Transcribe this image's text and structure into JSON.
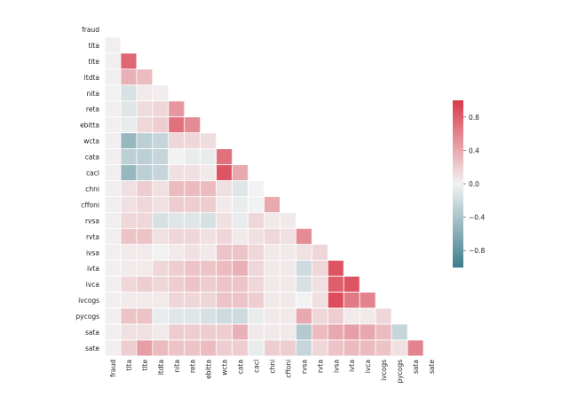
{
  "chart_data": {
    "type": "heatmap",
    "labels": [
      "fraud",
      "tlta",
      "tlte",
      "ltdta",
      "nita",
      "reta",
      "ebitta",
      "wcta",
      "cata",
      "cacl",
      "chni",
      "cffoni",
      "rvsa",
      "rvta",
      "ivsa",
      "ivta",
      "ivca",
      "ivcogs",
      "pycogs",
      "sata",
      "sate"
    ],
    "mask": "upper-triangle-including-diagonal",
    "colormap": {
      "low": "#3d7d8d",
      "mid": "#f2f2f2",
      "high": "#d9394a"
    },
    "vlim": [
      -1,
      1
    ],
    "colorbar_ticks": [
      0.8,
      0.4,
      0.0,
      -0.4,
      -0.8
    ],
    "colorbar_tick_labels": [
      "0.8",
      "0.4",
      "0.0",
      "−0.4",
      "−0.8"
    ],
    "values": [
      [],
      [
        0.02
      ],
      [
        0.02,
        0.75
      ],
      [
        0.02,
        0.35,
        0.3
      ],
      [
        0.0,
        -0.15,
        0.05,
        0.03
      ],
      [
        0.02,
        -0.1,
        0.12,
        0.15,
        0.5
      ],
      [
        0.02,
        -0.05,
        0.15,
        0.2,
        0.7,
        0.55
      ],
      [
        0.02,
        -0.5,
        -0.3,
        -0.25,
        0.15,
        0.15,
        0.12
      ],
      [
        0.02,
        -0.3,
        -0.3,
        -0.25,
        0.0,
        -0.05,
        -0.05,
        0.7
      ],
      [
        0.02,
        -0.5,
        -0.3,
        -0.25,
        0.1,
        0.1,
        0.05,
        0.85,
        0.4
      ],
      [
        0.02,
        0.1,
        0.2,
        0.1,
        0.3,
        0.3,
        0.3,
        0.1,
        -0.1,
        0.0
      ],
      [
        0.02,
        0.1,
        0.15,
        0.1,
        0.2,
        0.2,
        0.2,
        0.05,
        -0.05,
        0.0,
        0.4
      ],
      [
        0.02,
        0.15,
        0.15,
        -0.15,
        -0.1,
        -0.1,
        -0.15,
        0.1,
        -0.05,
        0.15,
        0.05,
        0.05
      ],
      [
        0.02,
        0.25,
        0.25,
        0.1,
        0.15,
        0.15,
        0.1,
        0.15,
        0.05,
        0.1,
        0.15,
        0.1,
        0.55
      ],
      [
        0.02,
        0.05,
        0.05,
        0.0,
        0.05,
        0.1,
        0.05,
        0.25,
        0.25,
        0.15,
        0.05,
        0.05,
        0.1,
        0.15
      ],
      [
        0.02,
        0.05,
        0.05,
        0.15,
        0.2,
        0.25,
        0.25,
        0.3,
        0.35,
        0.15,
        0.05,
        0.05,
        -0.2,
        0.15,
        0.85
      ],
      [
        0.02,
        0.15,
        0.2,
        0.15,
        0.2,
        0.25,
        0.2,
        0.25,
        0.25,
        0.15,
        0.05,
        0.05,
        -0.15,
        0.1,
        0.8,
        0.85
      ],
      [
        0.02,
        0.05,
        0.05,
        0.05,
        0.15,
        0.15,
        0.15,
        0.25,
        0.25,
        0.2,
        0.05,
        0.05,
        0.0,
        0.1,
        0.9,
        0.65,
        0.6
      ],
      [
        0.02,
        0.25,
        0.25,
        -0.05,
        -0.1,
        -0.1,
        -0.15,
        -0.2,
        -0.2,
        -0.05,
        0.05,
        0.05,
        0.4,
        0.15,
        0.2,
        0.05,
        0.05,
        0.15
      ],
      [
        0.02,
        0.1,
        0.1,
        0.05,
        0.2,
        0.2,
        0.2,
        0.2,
        0.35,
        0.05,
        0.05,
        0.05,
        -0.35,
        0.3,
        0.4,
        0.45,
        0.4,
        0.3,
        -0.25
      ],
      [
        0.02,
        0.2,
        0.45,
        0.3,
        0.25,
        0.25,
        0.3,
        0.2,
        0.2,
        -0.05,
        0.2,
        0.2,
        -0.25,
        0.15,
        0.25,
        0.3,
        0.3,
        0.25,
        0.1,
        0.6
      ]
    ]
  }
}
